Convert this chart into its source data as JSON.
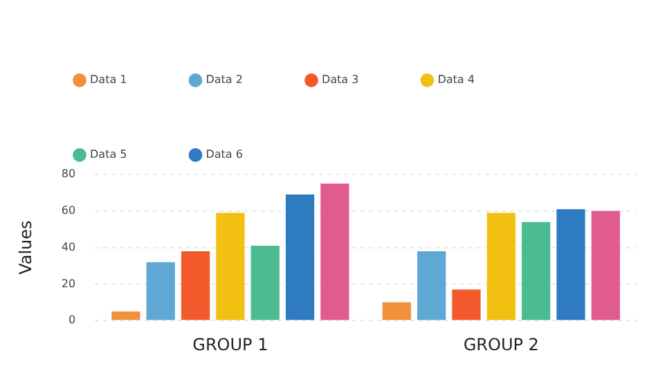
{
  "chart_data": {
    "type": "bar",
    "ylabel": "Values",
    "categories": [
      "GROUP 1",
      "GROUP 2"
    ],
    "ylim": [
      0,
      80
    ],
    "yticks": [
      0,
      20,
      40,
      60,
      80
    ],
    "grid": "y",
    "legend": "top",
    "series": [
      {
        "name": "Data 1",
        "color": "#f0913a",
        "values": [
          5,
          10
        ]
      },
      {
        "name": "Data 2",
        "color": "#5fa8d3",
        "values": [
          32,
          38
        ]
      },
      {
        "name": "Data 3",
        "color": "#f25a2c",
        "values": [
          38,
          17
        ]
      },
      {
        "name": "Data 4",
        "color": "#f2c012",
        "values": [
          59,
          59
        ]
      },
      {
        "name": "Data 5",
        "color": "#4dbb91",
        "values": [
          41,
          54
        ]
      },
      {
        "name": "Data 6",
        "color": "#2f7bc1",
        "values": [
          69,
          61
        ]
      },
      {
        "color": "#e05c8f",
        "values": [
          75,
          60
        ]
      }
    ]
  }
}
